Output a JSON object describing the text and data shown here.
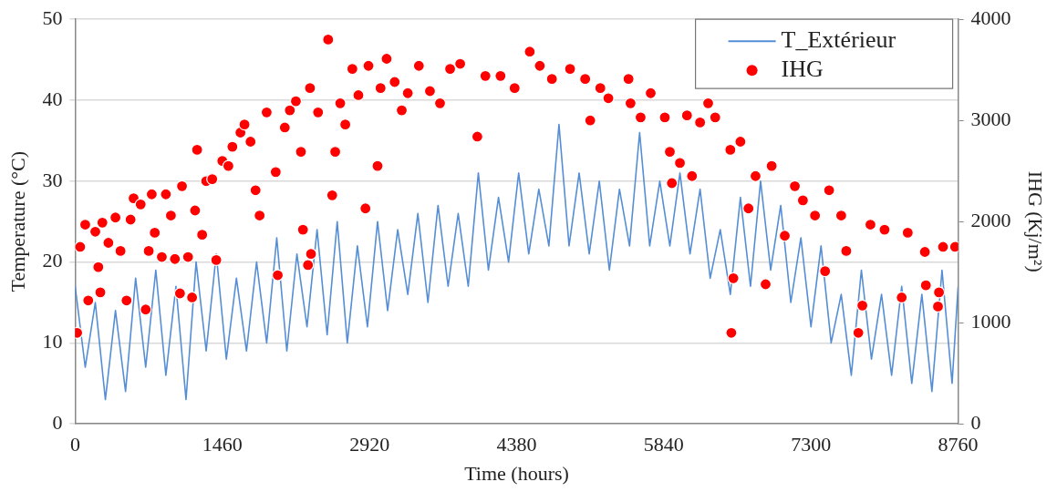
{
  "chart_data": {
    "type": "line",
    "xlabel": "Time (hours)",
    "ylabel": "Temperature (°C)",
    "y2label": "IHG (Kj/m²)",
    "xlim": [
      0,
      8760
    ],
    "xticks": [
      0,
      1460,
      2920,
      4380,
      5840,
      7300,
      8760
    ],
    "ylim": [
      0,
      50
    ],
    "yticks": [
      0,
      10,
      20,
      30,
      40,
      50
    ],
    "y2lim": [
      0,
      4000
    ],
    "y2ticks": [
      0,
      1000,
      2000,
      3000,
      4000
    ],
    "grid": "y",
    "legend": "top right",
    "series": [
      {
        "name": "T_Extérieur",
        "color": "#558ed5",
        "marker": "none",
        "x": [
          0,
          100,
          200,
          300,
          400,
          500,
          600,
          700,
          800,
          900,
          1000,
          1100,
          1200,
          1300,
          1400,
          1500,
          1600,
          1700,
          1800,
          1900,
          2000,
          2100,
          2200,
          2300,
          2400,
          2500,
          2600,
          2700,
          2800,
          2900,
          3000,
          3100,
          3200,
          3300,
          3400,
          3500,
          3600,
          3700,
          3800,
          3900,
          4000,
          4100,
          4200,
          4300,
          4400,
          4500,
          4600,
          4700,
          4800,
          4900,
          5000,
          5100,
          5200,
          5300,
          5400,
          5500,
          5600,
          5700,
          5800,
          5900,
          6000,
          6100,
          6200,
          6300,
          6400,
          6500,
          6600,
          6700,
          6800,
          6900,
          7000,
          7100,
          7200,
          7300,
          7400,
          7500,
          7600,
          7700,
          7800,
          7900,
          8000,
          8100,
          8200,
          8300,
          8400,
          8500,
          8600,
          8700,
          8760
        ],
        "values": [
          17,
          7,
          15,
          3,
          14,
          4,
          18,
          7,
          19,
          6,
          17,
          3,
          20,
          9,
          21,
          8,
          18,
          9,
          20,
          10,
          23,
          9,
          21,
          12,
          24,
          11,
          25,
          10,
          22,
          12,
          25,
          14,
          24,
          16,
          26,
          15,
          27,
          17,
          26,
          17,
          31,
          19,
          28,
          20,
          31,
          21,
          29,
          22,
          37,
          22,
          31,
          21,
          30,
          19,
          29,
          22,
          36,
          22,
          30,
          22,
          31,
          21,
          29,
          18,
          24,
          16,
          28,
          17,
          30,
          19,
          27,
          15,
          23,
          12,
          22,
          10,
          16,
          6,
          19,
          8,
          16,
          6,
          17,
          5,
          16,
          4,
          19,
          5,
          17
        ]
      },
      {
        "name": "IHG",
        "type": "scatter",
        "axis": "y2",
        "color": "#ff0000",
        "marker": "circle",
        "x": [
          20,
          50,
          100,
          130,
          200,
          230,
          250,
          270,
          330,
          400,
          450,
          510,
          550,
          580,
          650,
          700,
          730,
          760,
          790,
          860,
          900,
          950,
          990,
          1040,
          1060,
          1120,
          1160,
          1190,
          1210,
          1260,
          1300,
          1360,
          1400,
          1460,
          1520,
          1560,
          1640,
          1680,
          1740,
          1790,
          1830,
          1900,
          1990,
          2010,
          2080,
          2130,
          2190,
          2240,
          2260,
          2310,
          2340,
          2330,
          2410,
          2510,
          2550,
          2580,
          2630,
          2680,
          2750,
          2810,
          2880,
          2910,
          3000,
          3030,
          3090,
          3170,
          3240,
          3300,
          3410,
          3520,
          3620,
          3720,
          3820,
          3990,
          4070,
          4220,
          4360,
          4510,
          4610,
          4730,
          4910,
          5060,
          5110,
          5210,
          5290,
          5490,
          5510,
          5610,
          5710,
          5850,
          5900,
          5920,
          6000,
          6070,
          6120,
          6200,
          6280,
          6350,
          6500,
          6530,
          6510,
          6600,
          6680,
          6750,
          6850,
          6910,
          7040,
          7140,
          7220,
          7340,
          7440,
          7480,
          7600,
          7650,
          7770,
          7810,
          7890,
          8030,
          8200,
          8260,
          8430,
          8440,
          8560,
          8570,
          8610,
          8730
        ],
        "values": [
          900,
          1750,
          1970,
          1220,
          1900,
          1550,
          1300,
          1990,
          1790,
          2040,
          1710,
          1220,
          2020,
          2230,
          2170,
          1130,
          1710,
          2270,
          1890,
          1650,
          2270,
          2060,
          1630,
          1290,
          2350,
          1650,
          1250,
          2110,
          2710,
          1870,
          2400,
          2420,
          1620,
          2600,
          2550,
          2740,
          2880,
          2960,
          2790,
          2310,
          2060,
          3080,
          2490,
          1470,
          2930,
          3100,
          3190,
          2690,
          1920,
          1570,
          1680,
          3320,
          3080,
          3800,
          2260,
          2690,
          3170,
          2960,
          3510,
          3250,
          2130,
          3540,
          2550,
          3320,
          3610,
          3380,
          3100,
          3270,
          3540,
          3290,
          3170,
          3510,
          3560,
          2840,
          3440,
          3440,
          3320,
          3680,
          3540,
          3410,
          3510,
          3410,
          3000,
          3320,
          3220,
          3410,
          3170,
          3030,
          3270,
          3030,
          2690,
          2380,
          2580,
          3050,
          2450,
          2980,
          3170,
          3030,
          2710,
          1440,
          900,
          2790,
          2130,
          2450,
          1380,
          2550,
          1860,
          2350,
          2210,
          2060,
          1510,
          2310,
          2060,
          1710,
          900,
          1170,
          1970,
          1920,
          1250,
          1890,
          1700,
          1370,
          1160,
          1300,
          1750,
          1750
        ]
      }
    ]
  }
}
